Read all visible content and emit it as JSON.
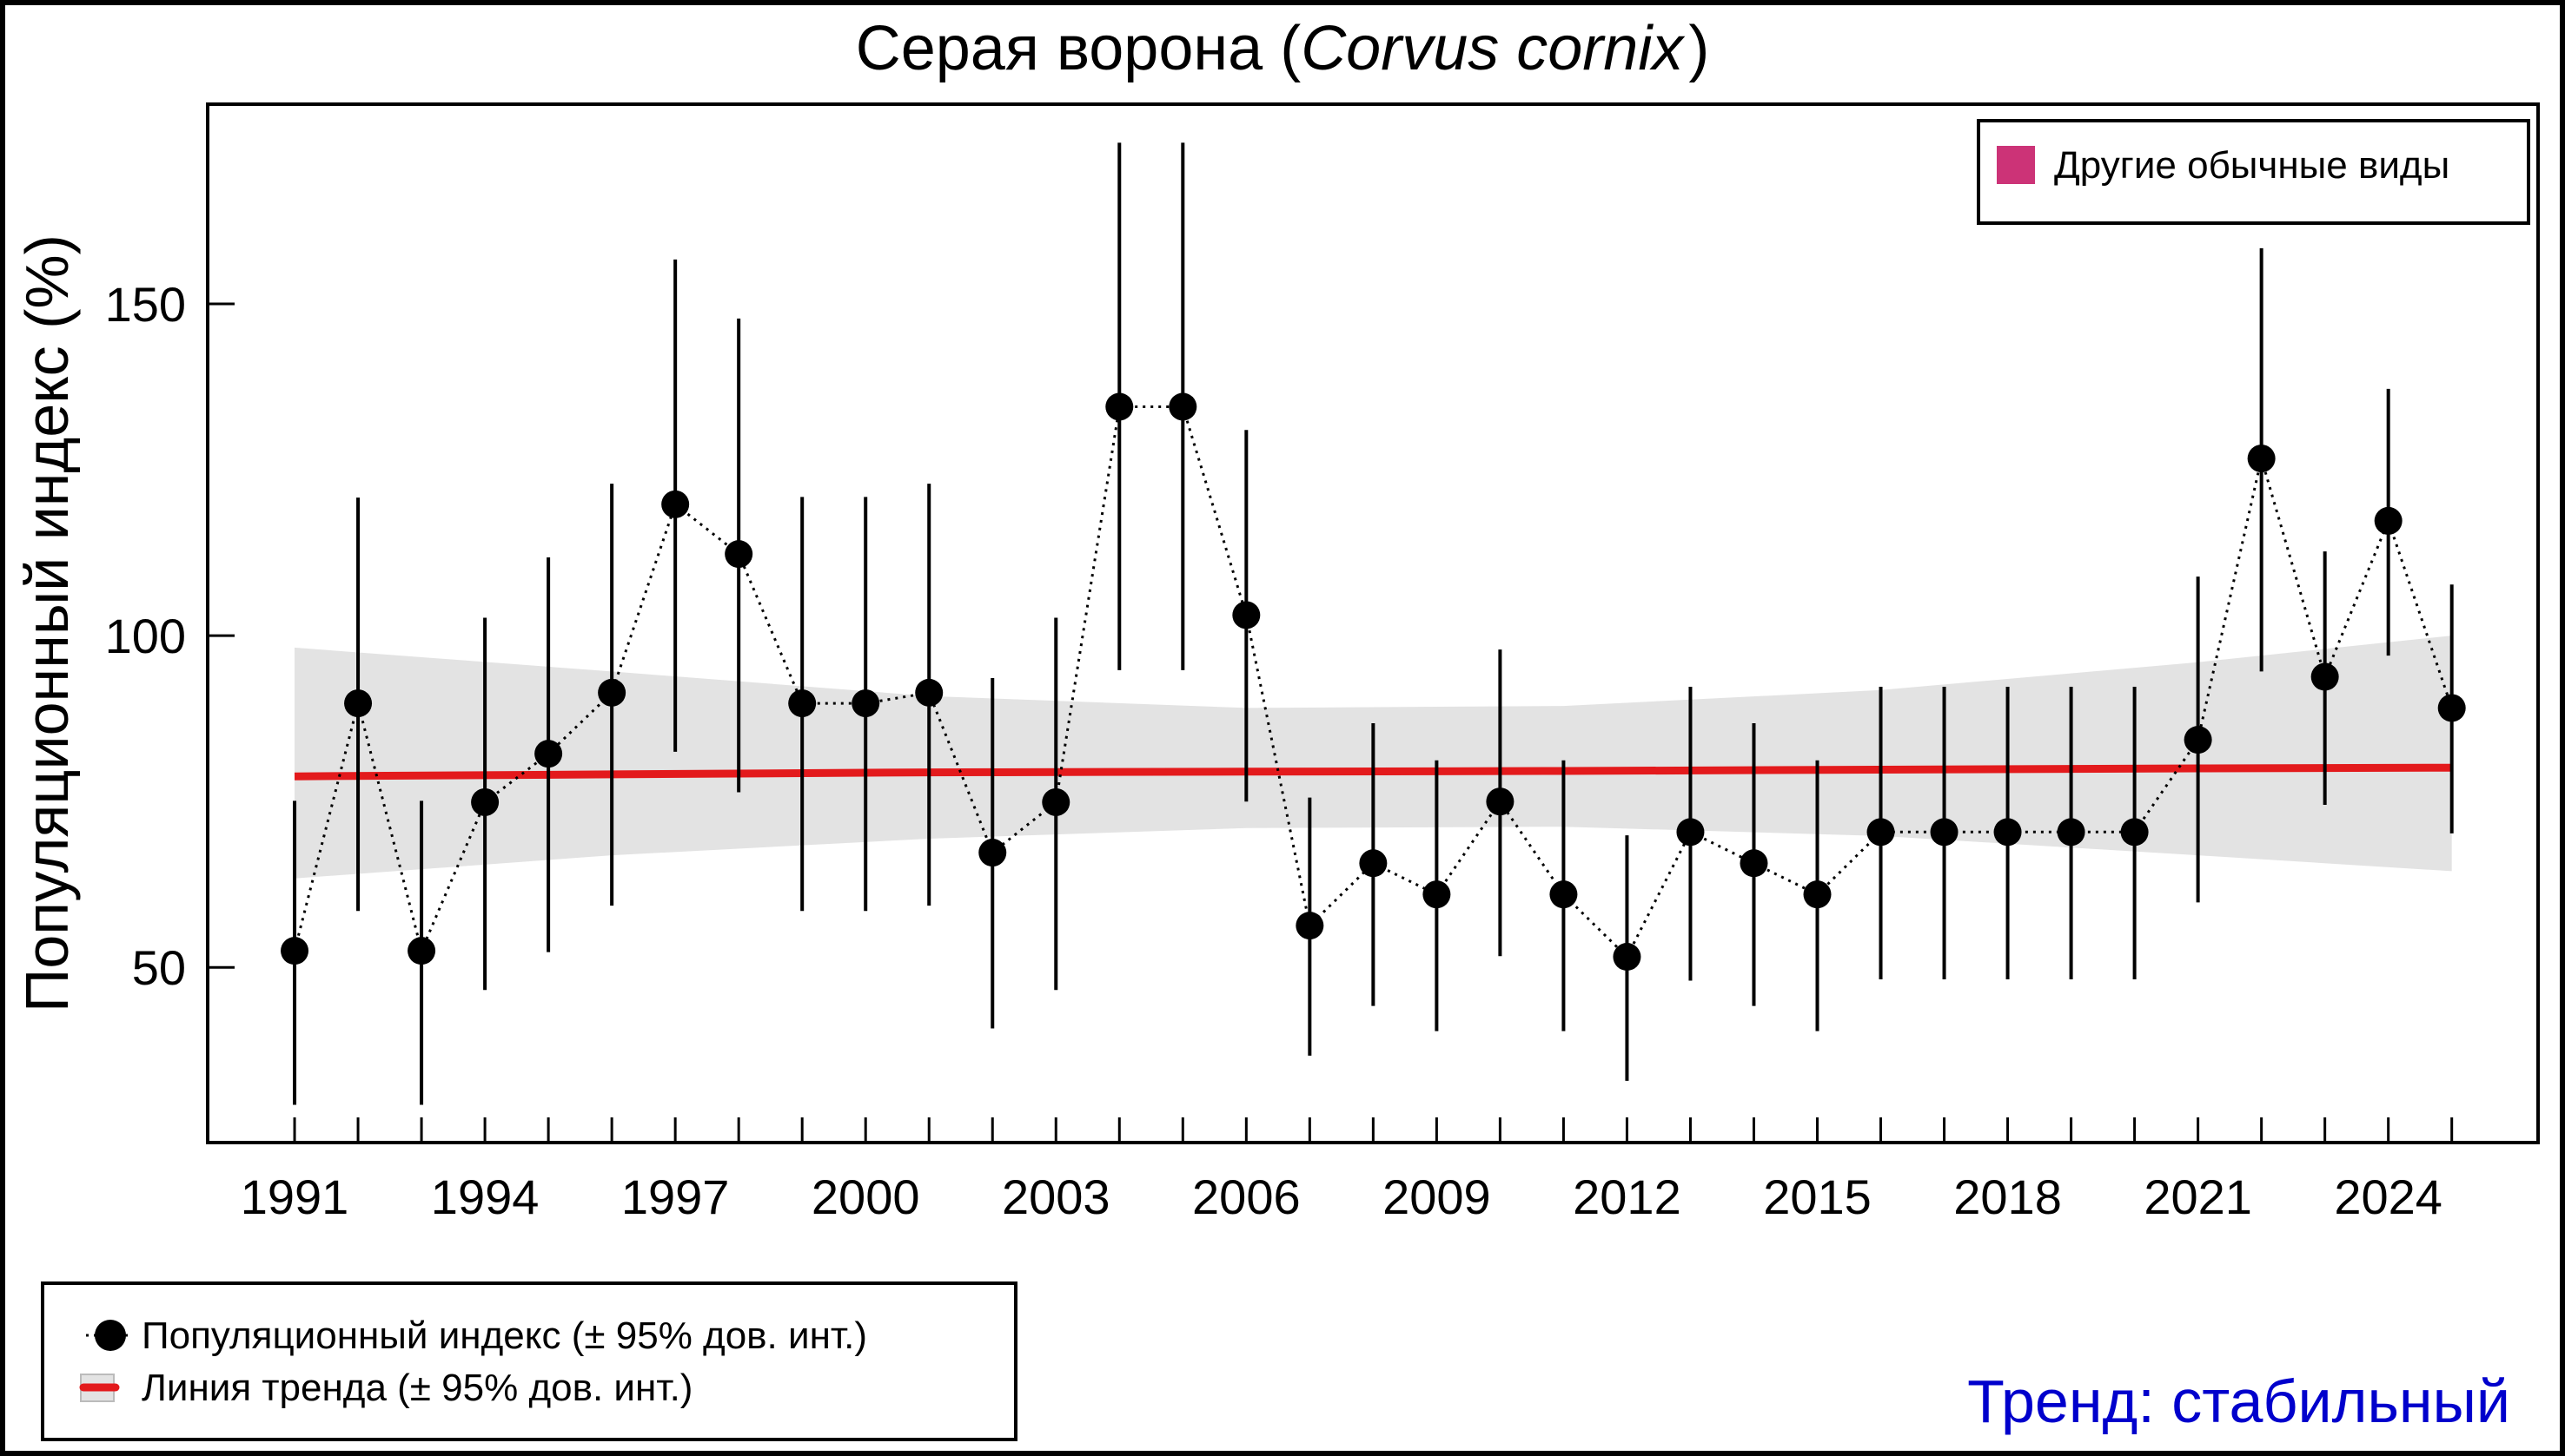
{
  "chart_data": {
    "type": "line",
    "title_plain": "Серая ворона (",
    "title_italic": "Corvus cornix",
    "title_close": ")",
    "xlabel": "",
    "ylabel": "Популяционный индекс (%)",
    "xlim": [
      1989.63,
      2026.36
    ],
    "ylim": [
      23.6,
      180.1
    ],
    "x_ticks": [
      1991,
      1992,
      1993,
      1994,
      1995,
      1996,
      1997,
      1998,
      1999,
      2000,
      2001,
      2002,
      2003,
      2004,
      2005,
      2006,
      2007,
      2008,
      2009,
      2010,
      2011,
      2012,
      2013,
      2014,
      2015,
      2016,
      2017,
      2018,
      2019,
      2020,
      2021,
      2022,
      2023,
      2024,
      2025
    ],
    "x_tick_labels": [
      {
        "x": 1991,
        "label": "1991"
      },
      {
        "x": 1994,
        "label": "1994"
      },
      {
        "x": 1997,
        "label": "1997"
      },
      {
        "x": 2000,
        "label": "2000"
      },
      {
        "x": 2003,
        "label": "2003"
      },
      {
        "x": 2006,
        "label": "2006"
      },
      {
        "x": 2009,
        "label": "2009"
      },
      {
        "x": 2012,
        "label": "2012"
      },
      {
        "x": 2015,
        "label": "2015"
      },
      {
        "x": 2018,
        "label": "2018"
      },
      {
        "x": 2021,
        "label": "2021"
      },
      {
        "x": 2024,
        "label": "2024"
      }
    ],
    "y_ticks": [
      {
        "y": 50,
        "label": "50"
      },
      {
        "y": 100,
        "label": "100"
      },
      {
        "y": 150,
        "label": "150"
      }
    ],
    "grid": false,
    "series": [
      {
        "name": "Популяционный индекс (± 95% дов. инт.)",
        "color": "#000000",
        "x": [
          1991,
          1992,
          1993,
          1994,
          1995,
          1996,
          1997,
          1998,
          1999,
          2000,
          2001,
          2002,
          2003,
          2004,
          2005,
          2006,
          2007,
          2008,
          2009,
          2010,
          2011,
          2012,
          2013,
          2014,
          2015,
          2016,
          2017,
          2018,
          2019,
          2020,
          2021,
          2022,
          2023,
          2024,
          2025
        ],
        "values": [
          52.5,
          89.8,
          52.5,
          74.9,
          82.2,
          91.4,
          119.8,
          112.3,
          89.8,
          89.8,
          91.4,
          67.3,
          74.9,
          134.5,
          134.5,
          103.1,
          56.3,
          65.7,
          61.0,
          75.0,
          61.0,
          51.6,
          70.4,
          65.7,
          61.0,
          70.4,
          70.4,
          70.4,
          70.4,
          70.4,
          84.3,
          126.7,
          93.8,
          117.3,
          89.1
        ],
        "ci_lower": [
          29.3,
          58.5,
          29.3,
          46.6,
          52.3,
          59.3,
          82.5,
          76.4,
          58.5,
          58.5,
          59.3,
          40.8,
          46.6,
          94.8,
          94.8,
          75.0,
          36.7,
          44.2,
          40.4,
          51.7,
          40.4,
          32.9,
          48.0,
          44.2,
          40.4,
          48.2,
          48.2,
          48.2,
          48.2,
          48.2,
          59.8,
          94.6,
          74.5,
          97.0,
          70.2
        ],
        "ci_upper": [
          75.1,
          120.8,
          75.1,
          102.7,
          111.8,
          122.9,
          156.7,
          147.8,
          120.9,
          120.9,
          122.9,
          93.6,
          102.7,
          174.3,
          174.3,
          131.0,
          75.6,
          86.8,
          81.2,
          97.9,
          81.2,
          69.9,
          92.3,
          86.8,
          81.2,
          92.3,
          92.3,
          92.3,
          92.3,
          92.3,
          108.9,
          158.4,
          112.7,
          137.2,
          107.7
        ]
      },
      {
        "name": "Линия тренда (± 95% дов. инт.)",
        "color": "#E31A1C",
        "band_color": "#E3E3E3",
        "x": [
          1991,
          1996,
          2001,
          2006,
          2011,
          2016,
          2021,
          2025
        ],
        "values": [
          78.8,
          79.1,
          79.4,
          79.5,
          79.6,
          79.8,
          80.0,
          80.1
        ],
        "ci_lower": [
          63.4,
          66.9,
          69.4,
          71.0,
          71.2,
          69.8,
          66.9,
          64.5
        ],
        "ci_upper": [
          98.2,
          94.6,
          90.9,
          89.1,
          89.4,
          91.8,
          96.0,
          100.0
        ]
      }
    ],
    "legends": [
      {
        "position": "top-right",
        "entries": [
          {
            "label": "Другие обычные виды",
            "color": "#CC3377",
            "symbol": "square"
          }
        ]
      },
      {
        "position": "bottom-left",
        "entries": [
          {
            "label": "Популяционный индекс (± 95% дов. инт.)",
            "symbol": "point-dotted"
          },
          {
            "label": "Линия тренда (± 95% дов. инт.)",
            "symbol": "line-band"
          }
        ]
      }
    ],
    "annotations": [
      {
        "text": "Тренд: стабильный",
        "color": "#0000CC",
        "position": "bottom-right"
      }
    ]
  }
}
